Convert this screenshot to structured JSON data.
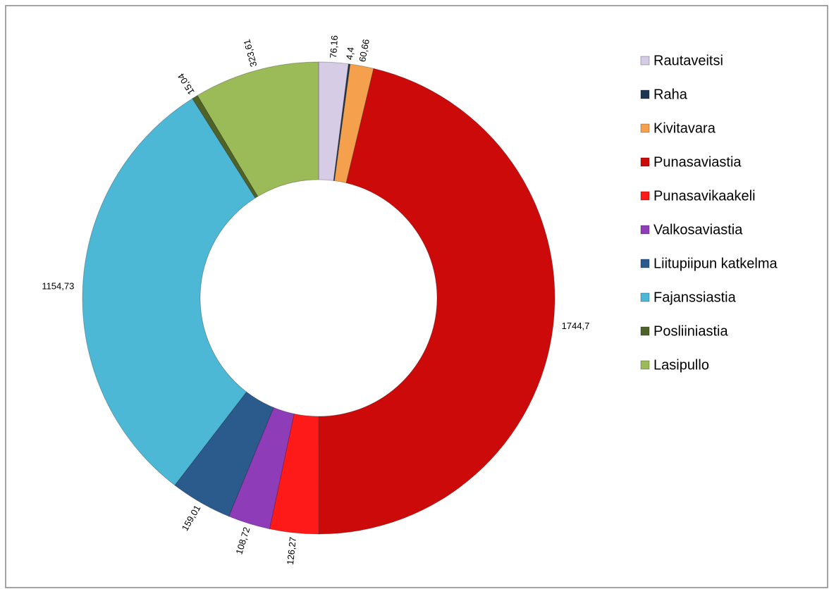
{
  "chart_data": {
    "type": "pie",
    "categories": [
      "Rautaveitsi",
      "Raha",
      "Kivitavara",
      "Punasaviastia",
      "Punasavikaakeli",
      "Valkosaviastia",
      "Liitupiipun katkelma",
      "Fajanssiastia",
      "Posliiniastia",
      "Lasipullo"
    ],
    "values": [
      76.16,
      4.4,
      60.66,
      1744.7,
      126.27,
      108.72,
      159.01,
      1154.73,
      15.04,
      323.61
    ],
    "value_labels": [
      "76,16",
      "4,4",
      "60,66",
      "1744,7",
      "126,27",
      "108,72",
      "159,01",
      "1154,73",
      "15,04",
      "323,61"
    ],
    "colors": [
      "#d6cce6",
      "#1f3554",
      "#f5a04c",
      "#cc0a0a",
      "#ff1a1a",
      "#8e3cb8",
      "#2b5a8c",
      "#4db8d6",
      "#4f6228",
      "#9bbb59"
    ],
    "legend": "right"
  }
}
